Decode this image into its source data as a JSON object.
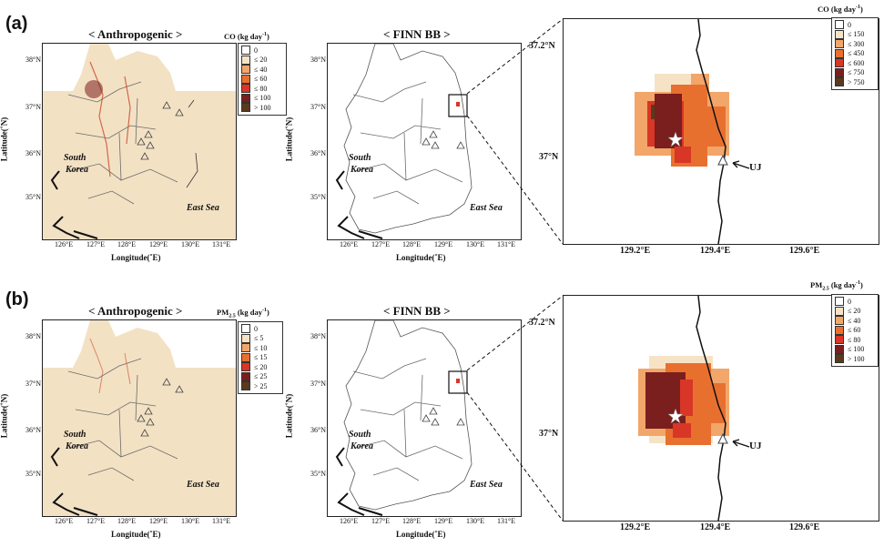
{
  "panels": [
    {
      "label": "(a)",
      "anthro_title": "< Anthropogenic >",
      "finn_title": "< FINN BB >",
      "left_legend": {
        "title_main": "CO",
        "title_sub": "",
        "title_unit": " (kg day",
        "title_sup": "-1",
        "title_end": ")",
        "items": [
          "0",
          "≤ 20",
          "≤ 40",
          "≤ 60",
          "≤ 80",
          "≤ 100",
          "> 100"
        ]
      },
      "zoom_legend": {
        "title_main": "CO",
        "title_sub": "",
        "title_unit": " (kg day",
        "title_sup": "-1",
        "title_end": ")",
        "items": [
          "0",
          "≤ 150",
          "≤ 300",
          "≤ 450",
          "≤ 600",
          "≤ 750",
          "> 750"
        ]
      }
    },
    {
      "label": "(b)",
      "anthro_title": "< Anthropogenic >",
      "finn_title": "< FINN BB >",
      "left_legend": {
        "title_main": "PM",
        "title_sub": "2.5",
        "title_unit": " (kg day",
        "title_sup": "-1",
        "title_end": ")",
        "items": [
          "0",
          "≤ 5",
          "≤ 10",
          "≤ 15",
          "≤ 20",
          "≤ 25",
          "> 25"
        ]
      },
      "zoom_legend": {
        "title_main": "PM",
        "title_sub": "2.5",
        "title_unit": " (kg day",
        "title_sup": "-1",
        "title_end": ")",
        "items": [
          "0",
          "≤ 20",
          "≤ 40",
          "≤ 60",
          "≤ 80",
          "≤ 100",
          "> 100"
        ]
      }
    }
  ],
  "legend_colors": [
    "#ffffff",
    "#f6e3c6",
    "#f2a66a",
    "#e8702f",
    "#d83626",
    "#7a1e1e",
    "#5a3a1e"
  ],
  "land_color": "#f3e1c4",
  "map_axes": {
    "x_ticks": [
      "126°E",
      "127°E",
      "128°E",
      "129°E",
      "130°E",
      "131°E"
    ],
    "y_ticks": [
      "38°N",
      "37°N",
      "36°N",
      "35°N"
    ],
    "xlabel": "Longitude(˚E)",
    "ylabel": "Latitude(˚N)"
  },
  "zoom_axes": {
    "x_ticks": [
      "129.2°E",
      "129.4°E",
      "129.6°E"
    ],
    "y_ticks": [
      "37.2°N",
      "37°N"
    ]
  },
  "map_labels": {
    "country_line1": "South",
    "country_line2": "Korea",
    "sea": "East Sea",
    "site": "UJ"
  }
}
